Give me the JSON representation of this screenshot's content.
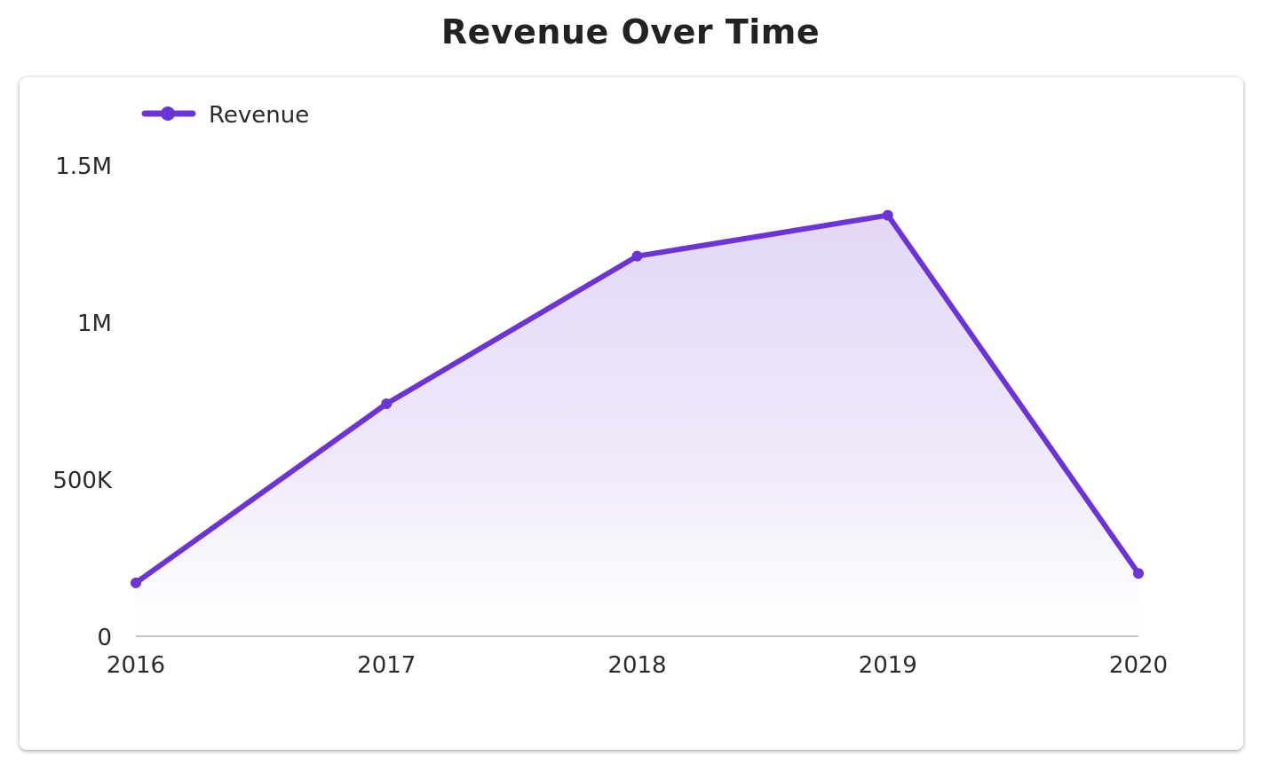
{
  "chart_data": {
    "type": "area",
    "title": "Revenue Over Time",
    "xlabel": "",
    "ylabel": "",
    "categories": [
      "2016",
      "2017",
      "2018",
      "2019",
      "2020"
    ],
    "series": [
      {
        "name": "Revenue",
        "values": [
          170000,
          740000,
          1210000,
          1340000,
          200000
        ]
      }
    ],
    "ylim": [
      0,
      1500000
    ],
    "y_ticks": [
      0,
      500000,
      1000000,
      1500000
    ],
    "y_tick_labels": [
      "0",
      "500K",
      "1M",
      "1.5M"
    ],
    "grid": false,
    "legend_position": "top-left",
    "colors": {
      "line": "#6c33d6",
      "fill": "#d7c8f2"
    }
  }
}
